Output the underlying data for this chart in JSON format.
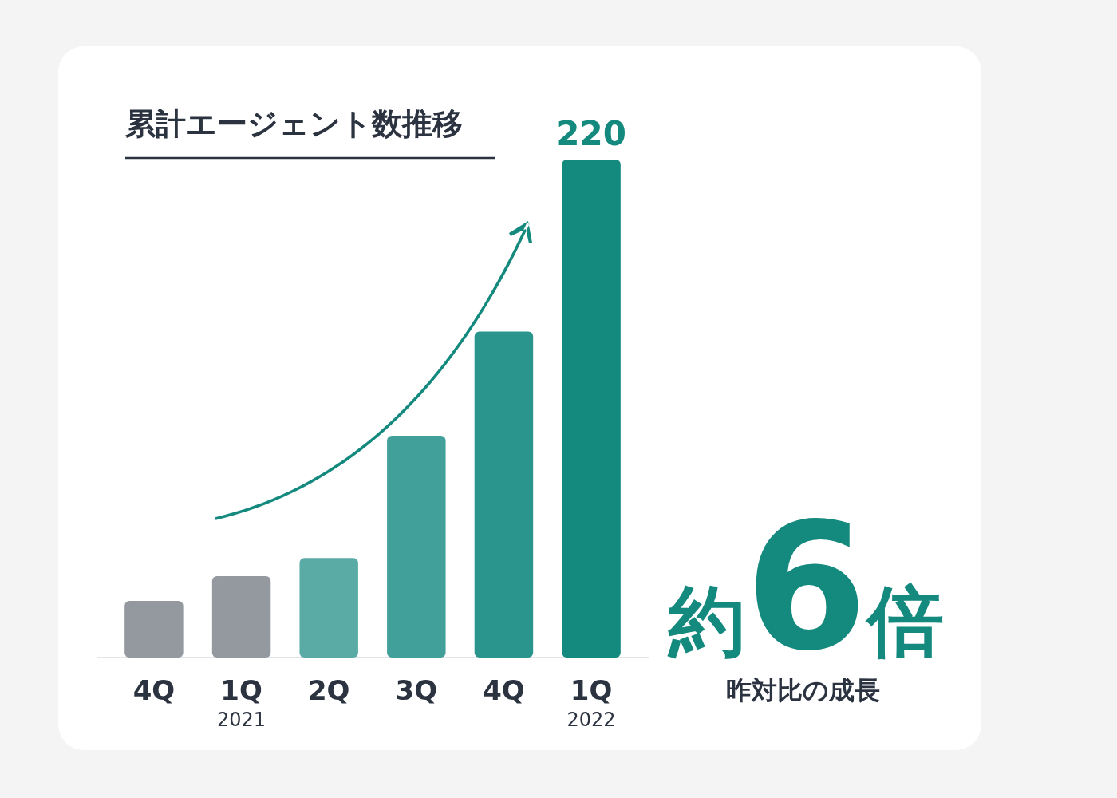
{
  "chart_data": {
    "type": "bar",
    "title": "累計エージェント数推移",
    "categories": [
      "4Q",
      "1Q\n2021",
      "2Q",
      "3Q",
      "4Q",
      "1Q\n2022"
    ],
    "values": [
      25,
      36,
      44,
      98,
      144,
      220
    ],
    "colors": [
      "#9499a0",
      "#9499a0",
      "#5aaba6",
      "#42a09a",
      "#2a958d",
      "#14897e"
    ],
    "value_labels": [
      null,
      null,
      null,
      null,
      null,
      "220"
    ],
    "annotations": [
      "約6倍",
      "昨対比の成長"
    ]
  }
}
